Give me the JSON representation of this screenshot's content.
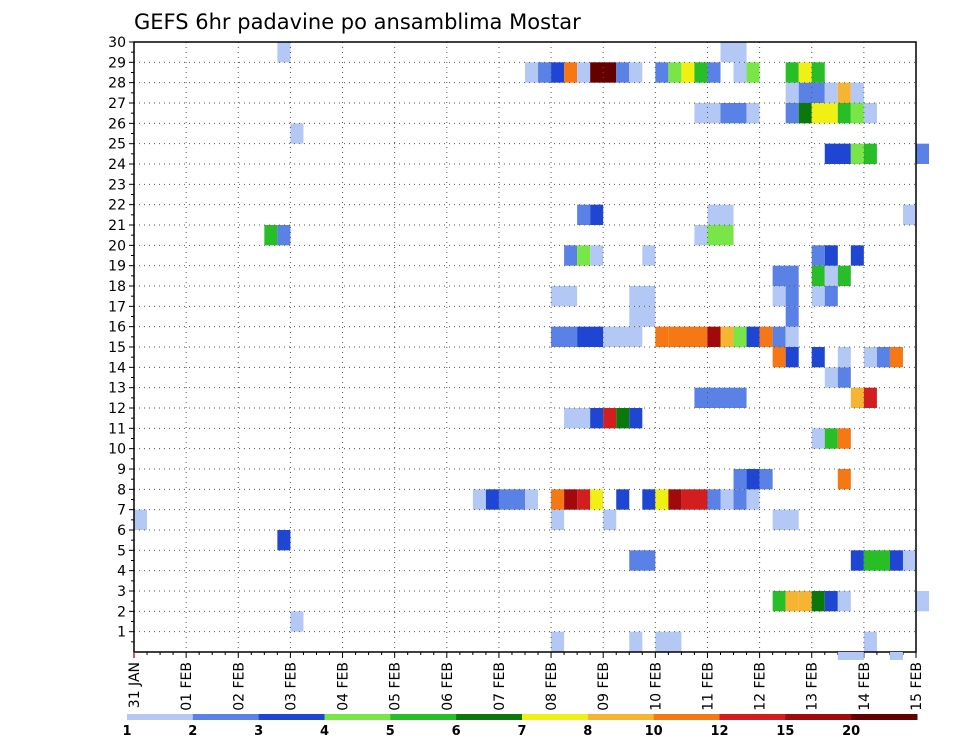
{
  "chart_data": {
    "type": "heatmap",
    "title": "GEFS 6hr padavine po ansamblima Mostar",
    "xlabel": "",
    "ylabel": "",
    "x_tick_labels": [
      "31 JAN",
      "01 FEB",
      "02 FEB",
      "03 FEB",
      "04 FEB",
      "05 FEB",
      "06 FEB",
      "07 FEB",
      "08 FEB",
      "09 FEB",
      "10 FEB",
      "11 FEB",
      "12 FEB",
      "13 FEB",
      "14 FEB",
      "15 FEB"
    ],
    "y_tick_labels": [
      "1",
      "2",
      "3",
      "4",
      "5",
      "6",
      "7",
      "8",
      "9",
      "10",
      "11",
      "12",
      "13",
      "14",
      "15",
      "16",
      "17",
      "18",
      "19",
      "20",
      "21",
      "22",
      "23",
      "24",
      "25",
      "26",
      "27",
      "28",
      "29",
      "30"
    ],
    "y_range": [
      0,
      30
    ],
    "x_range_days": [
      0,
      15
    ],
    "time_step_hours": 6,
    "grid": true,
    "colorbar": {
      "levels": [
        "1",
        "2",
        "3",
        "4",
        "5",
        "6",
        "7",
        "8",
        "10",
        "12",
        "15",
        "20"
      ],
      "colors": [
        "#b4c8f5",
        "#5a82e6",
        "#1e46d2",
        "#78e646",
        "#28be28",
        "#0a780a",
        "#f0f014",
        "#f5b432",
        "#f57814",
        "#d21e1e",
        "#a00a0a",
        "#640000"
      ]
    },
    "cells": [
      {
        "m": 1,
        "t": [
          [
            32,
            33
          ],
          [
            38,
            39
          ],
          [
            40,
            42
          ],
          [
            56,
            57
          ]
        ],
        "l": [
          1,
          1,
          1,
          1
        ]
      },
      {
        "m": 2,
        "t": [
          [
            12,
            13
          ]
        ],
        "l": [
          1
        ]
      },
      {
        "m": 3,
        "t": [
          [
            49,
            50
          ],
          [
            50,
            51
          ],
          [
            51,
            52
          ],
          [
            52,
            53
          ],
          [
            53,
            54
          ],
          [
            54,
            55
          ],
          [
            60,
            61
          ]
        ],
        "l": [
          5,
          8,
          8,
          6,
          3,
          1,
          1
        ]
      },
      {
        "m": 5,
        "t": [
          [
            38,
            40
          ],
          [
            55,
            56
          ],
          [
            56,
            58
          ],
          [
            58,
            59
          ],
          [
            59,
            60
          ]
        ],
        "l": [
          2,
          3,
          5,
          3,
          1
        ]
      },
      {
        "m": 6,
        "t": [
          [
            11,
            12
          ]
        ],
        "l": [
          3
        ]
      },
      {
        "m": 7,
        "t": [
          [
            0,
            1
          ],
          [
            32,
            33
          ],
          [
            36,
            37
          ],
          [
            49,
            51
          ]
        ],
        "l": [
          1,
          1,
          1,
          1
        ]
      },
      {
        "m": 8,
        "t": [
          [
            26,
            27
          ],
          [
            27,
            28
          ],
          [
            28,
            30
          ],
          [
            30,
            31
          ],
          [
            32,
            33
          ],
          [
            33,
            34
          ],
          [
            34,
            35
          ],
          [
            35,
            36
          ],
          [
            37,
            38
          ],
          [
            39,
            40
          ],
          [
            40,
            41
          ],
          [
            41,
            42
          ],
          [
            42,
            44
          ],
          [
            44,
            45
          ],
          [
            45,
            46
          ],
          [
            46,
            47
          ],
          [
            47,
            48
          ]
        ],
        "l": [
          1,
          3,
          2,
          1,
          9,
          11,
          10,
          7,
          3,
          3,
          7,
          11,
          10,
          2,
          1,
          2,
          1
        ]
      },
      {
        "m": 9,
        "t": [
          [
            46,
            47
          ],
          [
            47,
            48
          ],
          [
            48,
            49
          ],
          [
            54,
            55
          ]
        ],
        "l": [
          2,
          3,
          2,
          9
        ]
      },
      {
        "m": 11,
        "t": [
          [
            52,
            53
          ],
          [
            53,
            54
          ],
          [
            54,
            55
          ]
        ],
        "l": [
          1,
          5,
          9
        ]
      },
      {
        "m": 12,
        "t": [
          [
            33,
            35
          ],
          [
            35,
            36
          ],
          [
            36,
            37
          ],
          [
            37,
            38
          ],
          [
            38,
            39
          ]
        ],
        "l": [
          1,
          3,
          10,
          6,
          3
        ]
      },
      {
        "m": 13,
        "t": [
          [
            43,
            45
          ],
          [
            45,
            47
          ],
          [
            55,
            56
          ],
          [
            56,
            57
          ]
        ],
        "l": [
          2,
          2,
          8,
          10
        ]
      },
      {
        "m": 14,
        "t": [
          [
            53,
            54
          ],
          [
            54,
            55
          ]
        ],
        "l": [
          1,
          2
        ]
      },
      {
        "m": 15,
        "t": [
          [
            49,
            50
          ],
          [
            50,
            51
          ],
          [
            52,
            53
          ],
          [
            54,
            55
          ],
          [
            56,
            57
          ],
          [
            57,
            58
          ],
          [
            58,
            59
          ]
        ],
        "l": [
          9,
          3,
          3,
          1,
          1,
          2,
          9
        ]
      },
      {
        "m": 16,
        "t": [
          [
            32,
            34
          ],
          [
            34,
            36
          ],
          [
            36,
            39
          ],
          [
            40,
            41
          ],
          [
            41,
            44
          ],
          [
            44,
            45
          ],
          [
            45,
            46
          ],
          [
            46,
            47
          ],
          [
            47,
            48
          ],
          [
            48,
            49
          ],
          [
            49,
            50
          ],
          [
            50,
            51
          ]
        ],
        "l": [
          2,
          3,
          1,
          9,
          9,
          11,
          8,
          4,
          3,
          9,
          2,
          1
        ]
      },
      {
        "m": 17,
        "t": [
          [
            38,
            40
          ],
          [
            50,
            51
          ]
        ],
        "l": [
          1,
          2
        ]
      },
      {
        "m": 18,
        "t": [
          [
            32,
            34
          ],
          [
            38,
            40
          ],
          [
            49,
            50
          ],
          [
            50,
            51
          ],
          [
            52,
            53
          ],
          [
            53,
            54
          ]
        ],
        "l": [
          1,
          1,
          1,
          2,
          1,
          2
        ]
      },
      {
        "m": 19,
        "t": [
          [
            49,
            51
          ],
          [
            52,
            53
          ],
          [
            53,
            54
          ],
          [
            54,
            55
          ]
        ],
        "l": [
          2,
          5,
          1,
          5
        ]
      },
      {
        "m": 20,
        "t": [
          [
            33,
            34
          ],
          [
            34,
            35
          ],
          [
            35,
            36
          ],
          [
            39,
            40
          ],
          [
            52,
            53
          ],
          [
            53,
            54
          ],
          [
            55,
            56
          ]
        ],
        "l": [
          2,
          4,
          1,
          1,
          2,
          3,
          3
        ]
      },
      {
        "m": 21,
        "t": [
          [
            10,
            11
          ],
          [
            11,
            12
          ],
          [
            43,
            44
          ],
          [
            44,
            46
          ]
        ],
        "l": [
          5,
          2,
          1,
          4
        ]
      },
      {
        "m": 22,
        "t": [
          [
            34,
            35
          ],
          [
            35,
            36
          ],
          [
            44,
            46
          ],
          [
            59,
            60
          ]
        ],
        "l": [
          2,
          3,
          1,
          1
        ]
      },
      {
        "m": 25,
        "t": [
          [
            53,
            55
          ],
          [
            55,
            56
          ],
          [
            56,
            57
          ],
          [
            60,
            61
          ]
        ],
        "l": [
          3,
          4,
          5,
          2
        ]
      },
      {
        "m": 26,
        "t": [
          [
            12,
            13
          ]
        ],
        "l": [
          1
        ]
      },
      {
        "m": 27,
        "t": [
          [
            43,
            45
          ],
          [
            45,
            47
          ],
          [
            47,
            48
          ],
          [
            50,
            51
          ],
          [
            51,
            52
          ],
          [
            52,
            54
          ],
          [
            54,
            55
          ],
          [
            55,
            56
          ],
          [
            56,
            57
          ]
        ],
        "l": [
          1,
          2,
          1,
          2,
          6,
          7,
          5,
          4,
          1
        ]
      },
      {
        "m": 28,
        "t": [
          [
            50,
            51
          ],
          [
            51,
            53
          ],
          [
            53,
            54
          ],
          [
            54,
            55
          ],
          [
            55,
            56
          ]
        ],
        "l": [
          1,
          2,
          1,
          8,
          1
        ]
      },
      {
        "m": 29,
        "t": [
          [
            30,
            31
          ],
          [
            31,
            32
          ],
          [
            32,
            33
          ],
          [
            33,
            34
          ],
          [
            34,
            35
          ],
          [
            35,
            37
          ],
          [
            37,
            38
          ],
          [
            38,
            39
          ],
          [
            40,
            41
          ],
          [
            41,
            42
          ],
          [
            42,
            43
          ],
          [
            43,
            44
          ],
          [
            44,
            45
          ],
          [
            46,
            47
          ],
          [
            47,
            48
          ],
          [
            50,
            51
          ],
          [
            51,
            52
          ],
          [
            52,
            53
          ]
        ],
        "l": [
          1,
          2,
          3,
          9,
          1,
          12,
          2,
          1,
          2,
          4,
          7,
          5,
          2,
          1,
          4,
          5,
          7,
          5
        ]
      },
      {
        "m": 30,
        "t": [
          [
            11,
            12
          ],
          [
            45,
            47
          ]
        ],
        "l": [
          1,
          1
        ]
      }
    ],
    "below_axis_cells": {
      "t": [
        [
          54,
          56
        ],
        [
          58,
          59
        ]
      ],
      "l": [
        1,
        1
      ]
    }
  }
}
